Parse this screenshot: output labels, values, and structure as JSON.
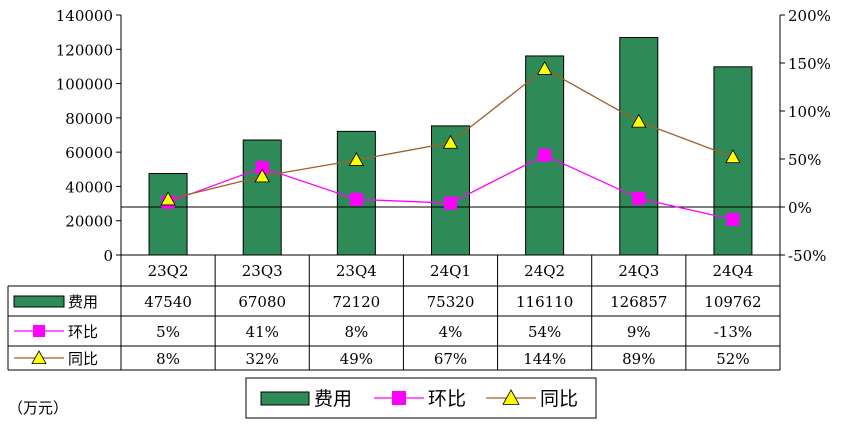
{
  "chart_data": {
    "type": "bar",
    "categories": [
      "23Q2",
      "23Q3",
      "23Q4",
      "24Q1",
      "24Q2",
      "24Q3",
      "24Q4"
    ],
    "series": [
      {
        "name": "费用",
        "type": "bar",
        "axis": "left",
        "values": [
          47540,
          67080,
          72120,
          75320,
          116110,
          126857,
          109762
        ],
        "labels": [
          "47540",
          "67080",
          "72120",
          "75320",
          "116110",
          "126857",
          "109762"
        ]
      },
      {
        "name": "环比",
        "type": "line",
        "axis": "right",
        "values": [
          5,
          41,
          8,
          4,
          54,
          9,
          -13
        ],
        "labels": [
          "5%",
          "41%",
          "8%",
          "4%",
          "54%",
          "9%",
          "-13%"
        ]
      },
      {
        "name": "同比",
        "type": "line",
        "axis": "right",
        "values": [
          8,
          32,
          49,
          67,
          144,
          89,
          52
        ],
        "labels": [
          "8%",
          "32%",
          "49%",
          "67%",
          "144%",
          "89%",
          "52%"
        ]
      }
    ],
    "left_axis": {
      "min": 0,
      "max": 140000,
      "ticks": [
        "0",
        "20000",
        "40000",
        "60000",
        "80000",
        "100000",
        "120000",
        "140000"
      ]
    },
    "right_axis": {
      "min": -50,
      "max": 200,
      "ticks": [
        "-50%",
        "0%",
        "50%",
        "100%",
        "150%",
        "200%"
      ]
    },
    "unit_note": "（万元）",
    "legend_placement": "bottom-center",
    "grid": false
  },
  "colors": {
    "bar": "#2e8b57",
    "qoq_line": "#ff00ff",
    "qoq_marker": "#ff00ff",
    "yoy_line": "#a0602a",
    "yoy_marker": "#ffff00",
    "axis": "#000000"
  }
}
